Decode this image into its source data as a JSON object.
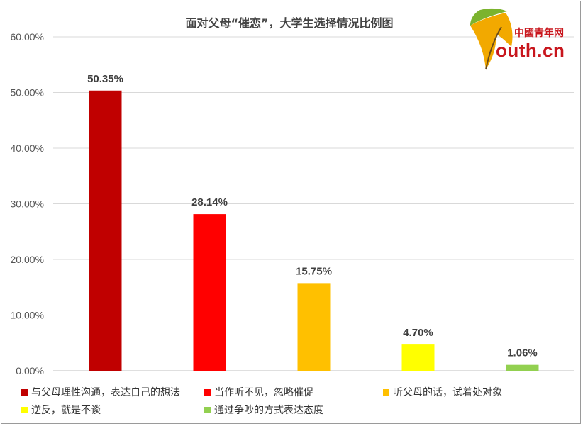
{
  "chart_data": {
    "type": "bar",
    "title": "面对父母“催恋”，大学生选择情况比例图",
    "categories": [
      "与父母理性沟通，表达自己的想法",
      "当作听不见，忽略催促",
      "听父母的话，试着处对象",
      "逆反，就是不谈",
      "通过争吵的方式表达态度"
    ],
    "values": [
      50.35,
      28.14,
      15.75,
      4.7,
      1.06
    ],
    "value_labels": [
      "50.35%",
      "28.14%",
      "15.75%",
      "4.70%",
      "1.06%"
    ],
    "colors": [
      "#c00000",
      "#ff0000",
      "#ffc000",
      "#ffff00",
      "#92d050"
    ],
    "ylim": [
      0,
      60
    ],
    "yticks": [
      0,
      10,
      20,
      30,
      40,
      50,
      60
    ],
    "ytick_labels": [
      "0.00%",
      "10.00%",
      "20.00%",
      "30.00%",
      "40.00%",
      "50.00%",
      "60.00%"
    ],
    "xlabel": "",
    "ylabel": "",
    "grid": true,
    "legend_position": "bottom"
  },
  "logo": {
    "cn_text": "中國青年网",
    "en_text": "outh.cn"
  }
}
